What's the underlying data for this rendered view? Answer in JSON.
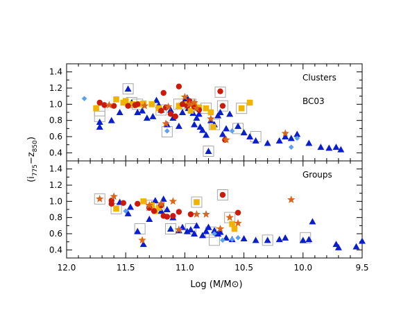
{
  "chart_data": {
    "type": "scatter",
    "xlabel": "Log (M/M⊙)",
    "ylabel": "(i775 − z850)",
    "ylabel_parts": {
      "open": "(i",
      "sub1": "775",
      "dash": "−z",
      "sub2": "850",
      "close": ")"
    },
    "xlim": [
      12.0,
      9.5
    ],
    "x_ticks": [
      "12.0",
      "11.5",
      "11.0",
      "10.5",
      "10.0",
      "9.5"
    ],
    "x_tick_values": [
      12.0,
      11.5,
      11.0,
      10.5,
      10.0,
      9.5
    ],
    "colors": {
      "triangle": "#0a1ed0",
      "circle": "#cc1a0a",
      "square": "#f0b400",
      "star": "#d8661c",
      "diamond": "#5aa0ee",
      "box_outline": "#a8a8a8"
    },
    "panels": [
      {
        "label": "Clusters",
        "sublabel": "BC03",
        "ylim": [
          0.3,
          1.5
        ],
        "y_ticks": [
          "0.4",
          "0.6",
          "0.8",
          "1.0",
          "1.2",
          "1.4"
        ],
        "y_tick_values": [
          0.4,
          0.6,
          0.8,
          1.0,
          1.2,
          1.4
        ],
        "series": [
          {
            "marker": "triangle",
            "points": [
              [
                11.72,
                0.78
              ],
              [
                11.72,
                0.72
              ],
              [
                11.48,
                1.19
              ],
              [
                11.45,
                1.02
              ],
              [
                11.4,
                0.9
              ],
              [
                11.36,
                0.92
              ],
              [
                11.32,
                0.83
              ],
              [
                11.27,
                0.85
              ],
              [
                11.24,
                1.05
              ],
              [
                11.22,
                0.99
              ],
              [
                11.2,
                0.93
              ],
              [
                11.15,
                0.75
              ],
              [
                11.12,
                0.93
              ],
              [
                11.1,
                0.83
              ],
              [
                11.05,
                0.98
              ],
              [
                11.02,
                0.9
              ],
              [
                11.0,
                1.05
              ],
              [
                10.98,
                1.08
              ],
              [
                10.97,
                0.95
              ],
              [
                10.95,
                1.02
              ],
              [
                10.93,
                0.89
              ],
              [
                10.9,
                0.83
              ],
              [
                10.88,
                0.88
              ],
              [
                10.85,
                0.68
              ],
              [
                10.82,
                0.62
              ],
              [
                10.8,
                0.42
              ],
              [
                10.78,
                0.8
              ],
              [
                10.75,
                0.75
              ],
              [
                10.72,
                0.86
              ],
              [
                10.7,
                0.9
              ],
              [
                10.68,
                0.63
              ],
              [
                10.65,
                0.7
              ],
              [
                10.55,
                0.73
              ],
              [
                10.5,
                0.65
              ],
              [
                10.45,
                0.6
              ],
              [
                10.4,
                0.55
              ],
              [
                10.3,
                0.52
              ],
              [
                10.2,
                0.55
              ],
              [
                10.15,
                0.6
              ],
              [
                10.1,
                0.58
              ],
              [
                10.05,
                0.63
              ],
              [
                9.95,
                0.52
              ],
              [
                9.85,
                0.47
              ],
              [
                9.78,
                0.46
              ],
              [
                9.72,
                0.47
              ],
              [
                9.68,
                0.44
              ],
              [
                11.05,
                0.73
              ],
              [
                10.92,
                0.75
              ],
              [
                10.87,
                0.72
              ],
              [
                11.55,
                0.9
              ],
              [
                10.62,
                0.88
              ],
              [
                11.62,
                0.8
              ]
            ]
          },
          {
            "marker": "circle",
            "points": [
              [
                11.72,
                1.02
              ],
              [
                11.68,
                0.99
              ],
              [
                11.6,
                0.98
              ],
              [
                11.48,
                0.98
              ],
              [
                11.42,
                0.99
              ],
              [
                11.4,
                1.0
              ],
              [
                11.2,
                0.92
              ],
              [
                11.18,
                1.14
              ],
              [
                11.16,
                0.96
              ],
              [
                11.12,
                0.88
              ],
              [
                11.08,
                0.85
              ],
              [
                11.05,
                1.22
              ],
              [
                11.02,
                1.0
              ],
              [
                10.98,
                0.98
              ],
              [
                10.96,
                1.04
              ],
              [
                10.92,
                0.97
              ],
              [
                10.88,
                0.93
              ],
              [
                10.7,
                1.16
              ],
              [
                10.68,
                0.98
              ],
              [
                10.66,
                0.56
              ]
            ]
          },
          {
            "marker": "square",
            "points": [
              [
                11.75,
                0.95
              ],
              [
                11.58,
                1.06
              ],
              [
                11.52,
                1.02
              ],
              [
                11.5,
                1.04
              ],
              [
                11.44,
                1.0
              ],
              [
                11.38,
                1.0
              ],
              [
                11.35,
                1.01
              ],
              [
                11.28,
                1.0
              ],
              [
                11.22,
                0.95
              ],
              [
                11.05,
                0.98
              ],
              [
                10.98,
                1.0
              ],
              [
                10.95,
                0.92
              ],
              [
                10.92,
                1.0
              ],
              [
                10.88,
                0.96
              ],
              [
                10.82,
                0.95
              ],
              [
                10.78,
                0.9
              ],
              [
                10.76,
                0.72
              ],
              [
                10.52,
                0.95
              ],
              [
                10.45,
                1.02
              ]
            ]
          },
          {
            "marker": "star",
            "points": [
              [
                11.64,
                0.99
              ],
              [
                11.34,
                0.98
              ],
              [
                11.16,
                0.76
              ],
              [
                11.14,
                0.97
              ],
              [
                11.0,
                1.09
              ],
              [
                10.96,
                1.0
              ],
              [
                10.92,
                1.02
              ],
              [
                10.9,
                0.95
              ],
              [
                10.78,
                0.82
              ],
              [
                10.65,
                0.56
              ],
              [
                10.15,
                0.64
              ]
            ]
          },
          {
            "marker": "diamond",
            "points": [
              [
                11.85,
                1.07
              ],
              [
                11.15,
                0.67
              ],
              [
                10.6,
                0.67
              ],
              [
                10.1,
                0.47
              ],
              [
                10.05,
                0.58
              ]
            ]
          },
          {
            "marker": "box",
            "points": [
              [
                11.72,
                0.92
              ],
              [
                11.72,
                0.85
              ],
              [
                11.48,
                1.19
              ],
              [
                11.45,
                1.02
              ],
              [
                11.4,
                1.0
              ],
              [
                11.2,
                0.93
              ],
              [
                11.15,
                0.66
              ],
              [
                11.05,
                1.0
              ],
              [
                10.95,
                1.0
              ],
              [
                10.82,
                0.95
              ],
              [
                10.8,
                0.42
              ],
              [
                10.75,
                0.75
              ],
              [
                10.7,
                1.15
              ],
              [
                10.68,
                0.98
              ],
              [
                10.55,
                0.7
              ],
              [
                10.52,
                0.95
              ],
              [
                10.4,
                0.6
              ]
            ]
          }
        ]
      },
      {
        "label": "Groups",
        "sublabel": "",
        "ylim": [
          0.3,
          1.5
        ],
        "y_ticks": [
          "0.4",
          "0.6",
          "0.8",
          "1.0",
          "1.2",
          "1.4"
        ],
        "y_tick_values": [
          0.4,
          0.6,
          0.8,
          1.0,
          1.2,
          1.4
        ],
        "series": [
          {
            "marker": "triangle",
            "points": [
              [
                11.55,
                0.99
              ],
              [
                11.48,
                0.85
              ],
              [
                11.46,
                0.93
              ],
              [
                11.4,
                0.63
              ],
              [
                11.35,
                0.47
              ],
              [
                11.3,
                0.78
              ],
              [
                11.28,
                0.96
              ],
              [
                11.25,
                1.01
              ],
              [
                11.22,
                0.93
              ],
              [
                11.2,
                0.88
              ],
              [
                11.18,
                1.03
              ],
              [
                11.15,
                0.9
              ],
              [
                11.12,
                0.66
              ],
              [
                11.1,
                0.8
              ],
              [
                11.05,
                0.64
              ],
              [
                11.02,
                0.68
              ],
              [
                10.98,
                0.63
              ],
              [
                10.95,
                0.65
              ],
              [
                10.92,
                0.6
              ],
              [
                10.9,
                0.7
              ],
              [
                10.85,
                0.58
              ],
              [
                10.82,
                0.63
              ],
              [
                10.8,
                0.68
              ],
              [
                10.75,
                0.64
              ],
              [
                10.72,
                0.6
              ],
              [
                10.65,
                0.55
              ],
              [
                10.6,
                0.53
              ],
              [
                10.5,
                0.54
              ],
              [
                10.4,
                0.52
              ],
              [
                10.3,
                0.52
              ],
              [
                10.2,
                0.53
              ],
              [
                10.15,
                0.55
              ],
              [
                10.0,
                0.52
              ],
              [
                9.95,
                0.53
              ],
              [
                9.92,
                0.75
              ],
              [
                9.72,
                0.47
              ],
              [
                9.7,
                0.43
              ],
              [
                9.55,
                0.44
              ],
              [
                9.5,
                0.51
              ],
              [
                10.8,
                0.68
              ],
              [
                10.7,
                0.62
              ]
            ]
          },
          {
            "marker": "circle",
            "points": [
              [
                11.62,
                1.01
              ],
              [
                11.62,
                0.97
              ],
              [
                11.52,
                0.98
              ],
              [
                11.4,
                0.97
              ],
              [
                11.3,
                0.92
              ],
              [
                11.26,
                0.88
              ],
              [
                11.18,
                0.82
              ],
              [
                11.15,
                0.81
              ],
              [
                11.1,
                0.82
              ],
              [
                11.05,
                0.87
              ],
              [
                10.95,
                0.84
              ],
              [
                10.68,
                1.08
              ],
              [
                10.55,
                0.86
              ],
              [
                11.2,
                0.95
              ]
            ]
          },
          {
            "marker": "square",
            "points": [
              [
                11.58,
                0.91
              ],
              [
                11.35,
                1.0
              ],
              [
                11.28,
                0.95
              ],
              [
                11.25,
                0.88
              ],
              [
                11.22,
                0.92
              ],
              [
                10.9,
                0.99
              ],
              [
                10.6,
                0.72
              ],
              [
                10.58,
                0.66
              ]
            ]
          },
          {
            "marker": "star",
            "points": [
              [
                11.72,
                1.03
              ],
              [
                11.6,
                1.06
              ],
              [
                11.36,
                0.52
              ],
              [
                11.3,
                0.95
              ],
              [
                11.2,
                0.97
              ],
              [
                11.1,
                1.0
              ],
              [
                11.05,
                0.65
              ],
              [
                10.9,
                0.84
              ],
              [
                10.82,
                0.84
              ],
              [
                10.7,
                0.66
              ],
              [
                10.62,
                0.8
              ],
              [
                10.55,
                0.73
              ],
              [
                10.1,
                1.02
              ]
            ]
          },
          {
            "marker": "diamond",
            "points": [
              [
                11.5,
                0.88
              ],
              [
                10.75,
                0.6
              ],
              [
                10.68,
                0.52
              ],
              [
                10.6,
                0.53
              ],
              [
                10.55,
                0.55
              ]
            ]
          },
          {
            "marker": "box",
            "points": [
              [
                11.72,
                1.03
              ],
              [
                11.58,
                0.91
              ],
              [
                11.38,
                0.66
              ],
              [
                11.28,
                0.95
              ],
              [
                11.22,
                0.92
              ],
              [
                11.12,
                0.66
              ],
              [
                10.9,
                0.99
              ],
              [
                10.78,
                0.62
              ],
              [
                10.75,
                0.52
              ],
              [
                10.68,
                1.08
              ],
              [
                10.62,
                0.8
              ],
              [
                10.3,
                0.52
              ],
              [
                9.98,
                0.55
              ],
              [
                10.95,
                0.66
              ]
            ]
          }
        ]
      }
    ]
  }
}
